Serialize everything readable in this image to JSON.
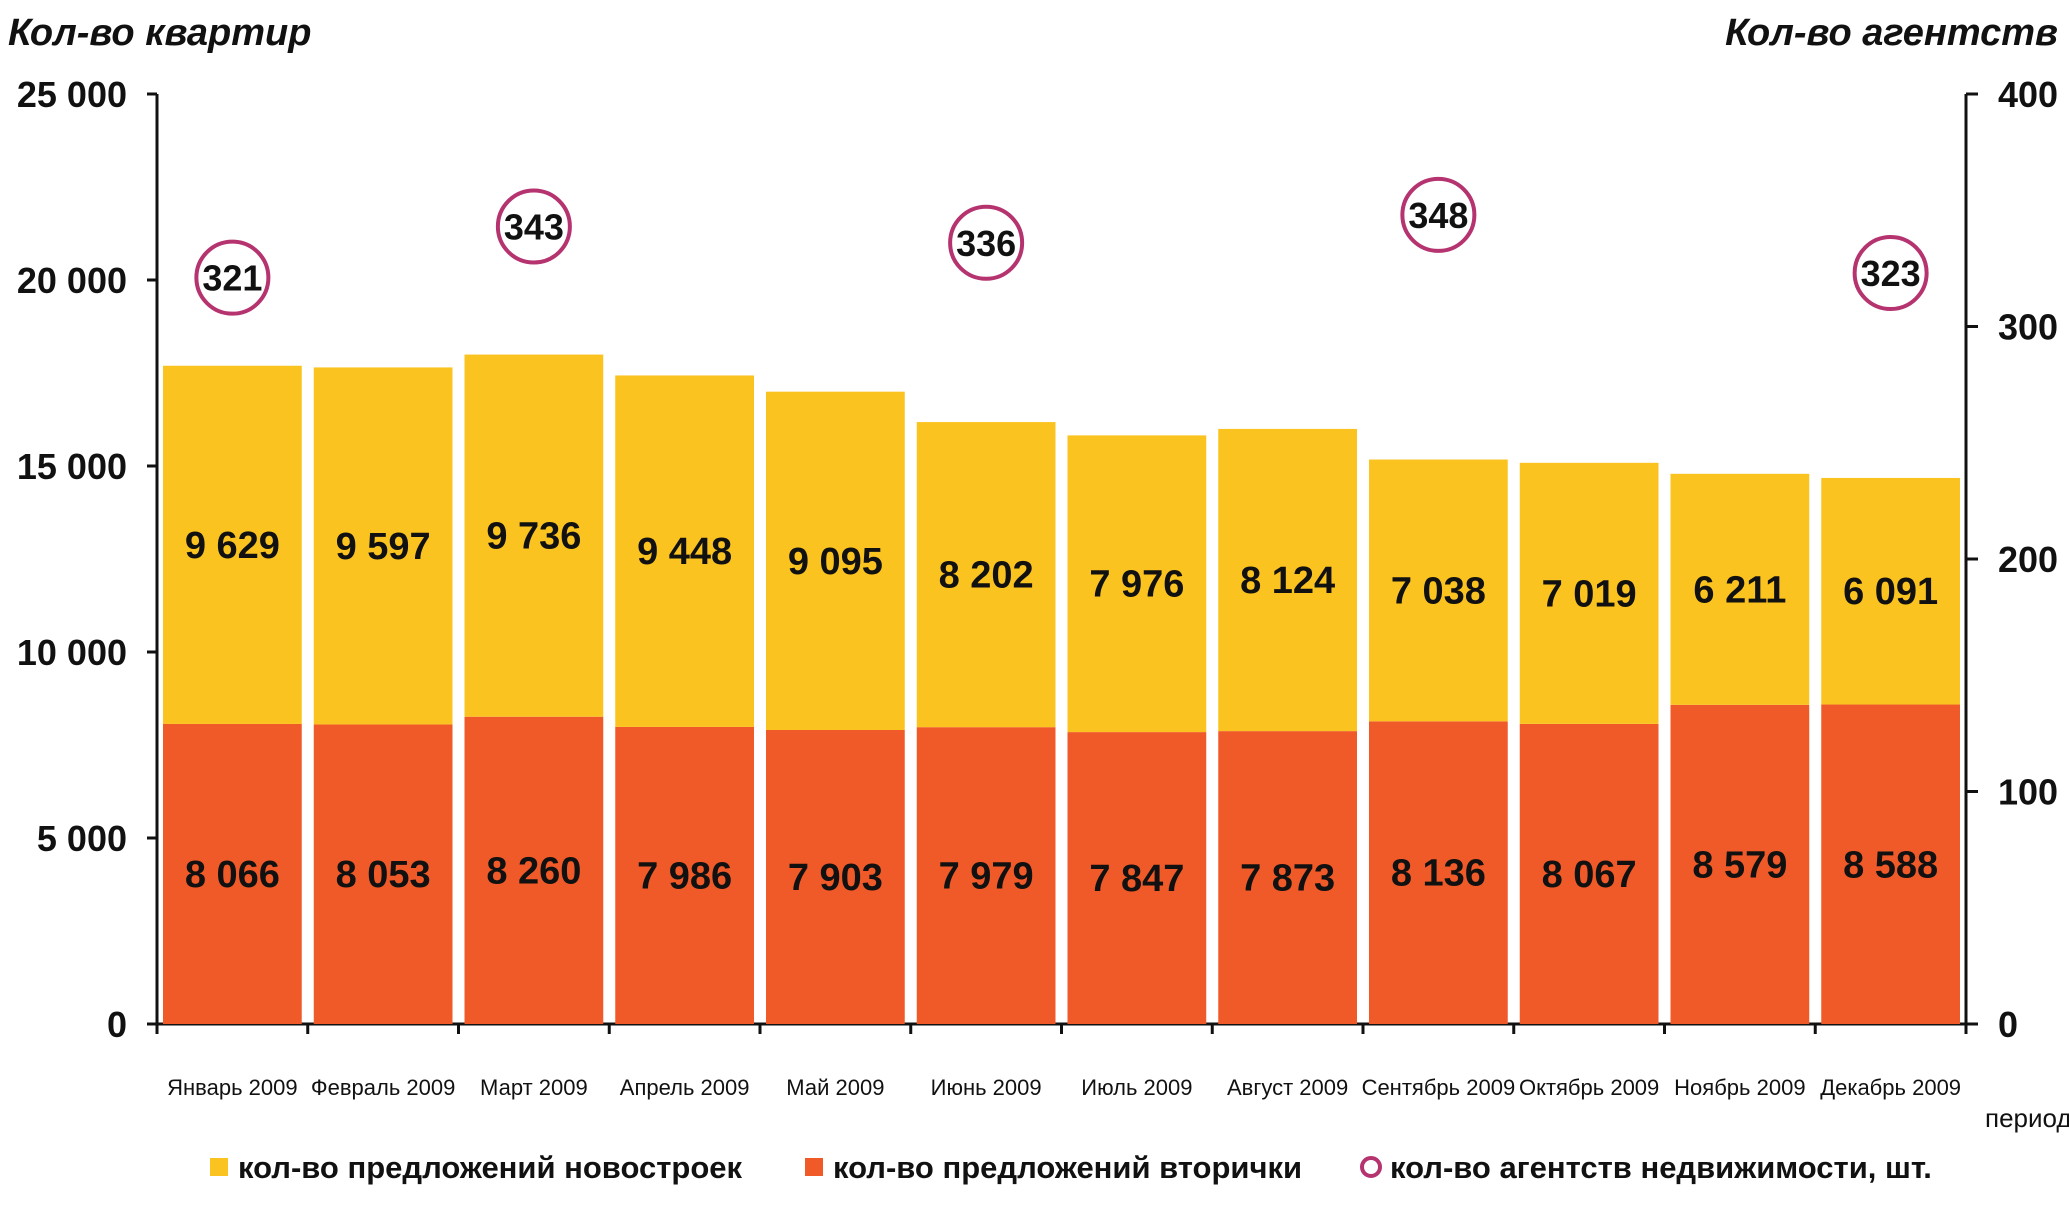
{
  "chart_data": {
    "type": "bar",
    "stacked": true,
    "categories": [
      "Январь 2009",
      "Февраль 2009",
      "Март 2009",
      "Апрель 2009",
      "Май 2009",
      "Июнь 2009",
      "Июль 2009",
      "Август 2009",
      "Сентябрь 2009",
      "Октябрь 2009",
      "Ноябрь 2009",
      "Декабрь 2009"
    ],
    "series": [
      {
        "name": "кол-во предложений вторички",
        "color": "#f05a28",
        "values": [
          8066,
          8053,
          8260,
          7986,
          7903,
          7979,
          7847,
          7873,
          8136,
          8067,
          8579,
          8588
        ],
        "labels": [
          "8 066",
          "8 053",
          "8 260",
          "7 986",
          "7 903",
          "7 979",
          "7 847",
          "7 873",
          "8 136",
          "8 067",
          "8 579",
          "8 588"
        ]
      },
      {
        "name": "кол-во предложений новостроек",
        "color": "#fbc320",
        "values": [
          9629,
          9597,
          9736,
          9448,
          9095,
          8202,
          7976,
          8124,
          7038,
          7019,
          6211,
          6091
        ],
        "labels": [
          "9 629",
          "9 597",
          "9 736",
          "9 448",
          "9 095",
          "8 202",
          "7 976",
          "8 124",
          "7 038",
          "7 019",
          "6 211",
          "6 091"
        ]
      }
    ],
    "agencies": {
      "name": "кол-во агентств недвижимости, шт.",
      "color": "#b5336f",
      "points": [
        {
          "category_index": 0,
          "value": 321
        },
        {
          "category_index": 2,
          "value": 343
        },
        {
          "category_index": 5,
          "value": 336
        },
        {
          "category_index": 8,
          "value": 348
        },
        {
          "category_index": 11,
          "value": 323
        }
      ]
    },
    "ylabel_left": "Кол-во квартир",
    "ylabel_right": "Кол-во агентств",
    "xlabel": "период",
    "ylim_left": [
      0,
      25000
    ],
    "ylim_right": [
      0,
      400
    ],
    "yticks_left": [
      "0",
      "5 000",
      "10 000",
      "15 000",
      "20 000",
      "25 000"
    ],
    "yticks_right": [
      "0",
      "100",
      "200",
      "300",
      "400"
    ],
    "legend_order": [
      "кол-во предложений новостроек",
      "кол-во предложений вторички",
      "кол-во агентств недвижимости, шт."
    ],
    "legend_position": "bottom"
  }
}
